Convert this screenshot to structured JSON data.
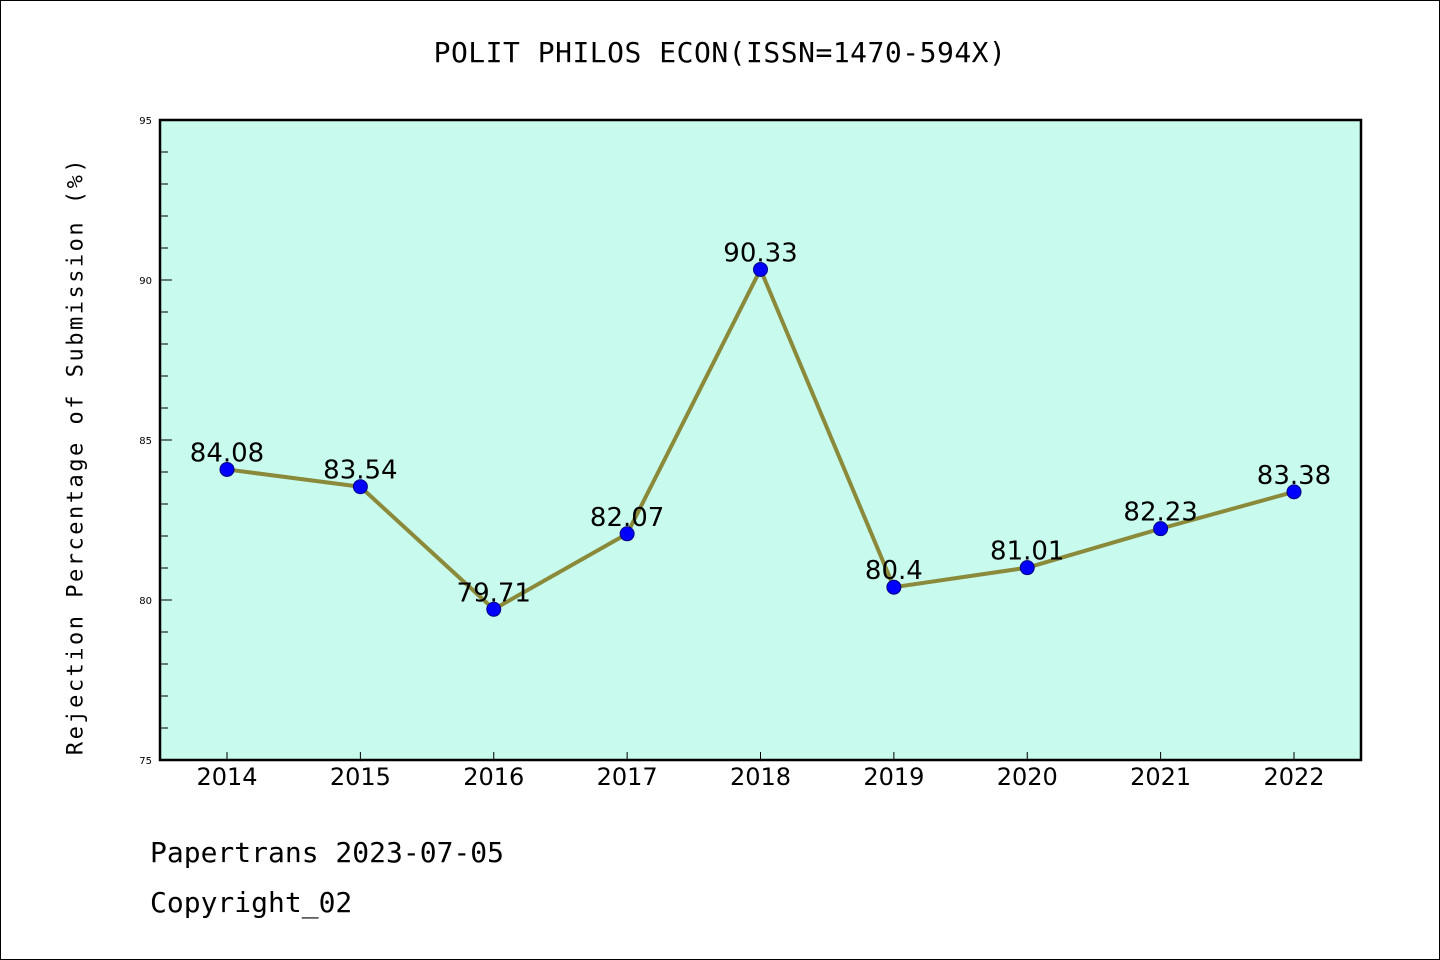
{
  "chart_data": {
    "type": "line",
    "title": "POLIT PHILOS ECON(ISSN=1470-594X)",
    "xlabel": "",
    "ylabel": "Rejection Percentage of Submission (%)",
    "categories": [
      "2014",
      "2015",
      "2016",
      "2017",
      "2018",
      "2019",
      "2020",
      "2021",
      "2022"
    ],
    "series": [
      {
        "values": [
          84.08,
          83.54,
          79.71,
          82.07,
          90.33,
          80.4,
          81.01,
          82.23,
          83.38
        ],
        "labels": [
          "84.08",
          "83.54",
          "79.71",
          "82.07",
          "90.33",
          "80.4",
          "81.01",
          "82.23",
          "83.38"
        ]
      }
    ],
    "ylim": [
      75,
      95
    ],
    "yticks": [
      75,
      80,
      85,
      90,
      95
    ],
    "grid": false,
    "colors": {
      "plot_background": "#c8fbee",
      "line": "#8b8a3a",
      "marker": "#0000ff"
    }
  },
  "footer": {
    "date_line": "Papertrans 2023-07-05",
    "copyright_line": "Copyright_02"
  }
}
